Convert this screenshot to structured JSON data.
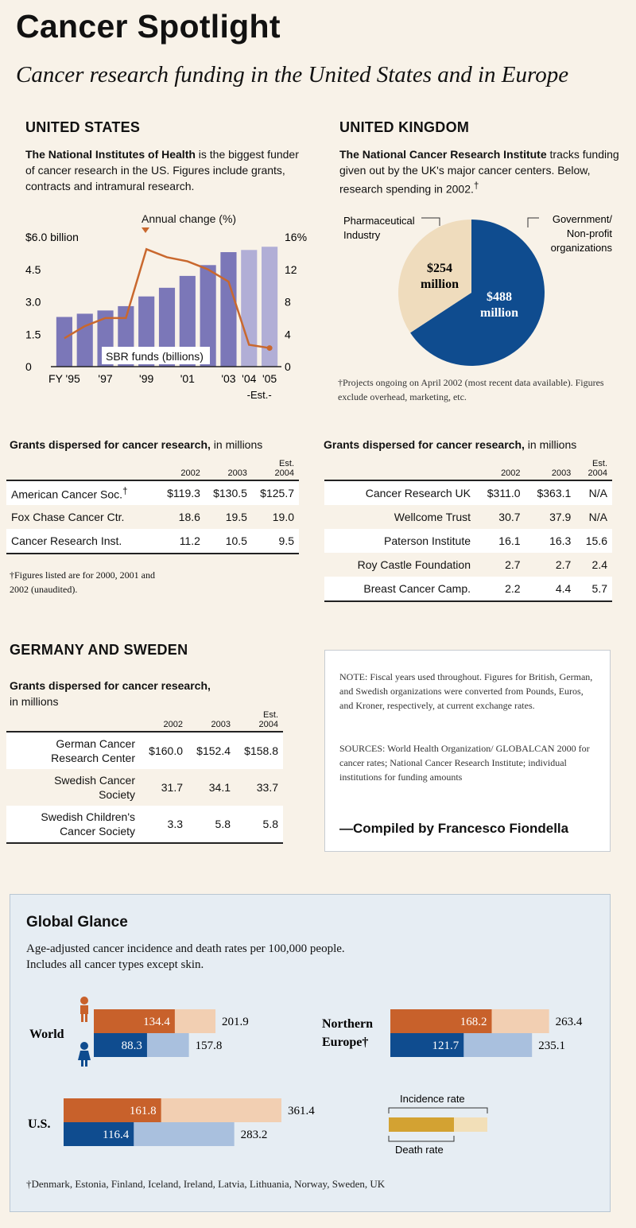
{
  "header": {
    "title": "Cancer Spotlight",
    "subtitle": "Cancer research funding in the United States and in Europe"
  },
  "us": {
    "heading": "UNITED STATES",
    "intro_bold": "The National Institutes of Health",
    "intro_rest": " is the biggest funder of cancer research in the US. Figures include grants, contracts and intramural research."
  },
  "uk": {
    "heading": "UNITED KINGDOM",
    "intro_bold": "The National Cancer Research Institute",
    "intro_rest": " tracks funding given out by the UK's major cancer centers. Below, research spending in 2002.",
    "intro_mark": "†",
    "footnote": "†Projects ongoing on April 2002 (most recent data available). Figures exclude overhead, marketing, etc."
  },
  "chart_data": [
    {
      "type": "bar",
      "title": "",
      "categories": [
        "FY '95",
        "'96",
        "'97",
        "'98",
        "'99",
        "'00",
        "'01",
        "'02",
        "'03",
        "'04",
        "'05"
      ],
      "x_tick_labels": [
        "FY '95",
        "'97",
        "'99",
        "'01",
        "'03",
        "'04",
        "'05"
      ],
      "x_sublabel": "-Est.-",
      "left_axis": {
        "label": "$6.0 billion",
        "ticks": [
          "0",
          "1.5",
          "3.0",
          "4.5",
          "$6.0 billion"
        ],
        "ylim": [
          0,
          6.0
        ]
      },
      "right_axis": {
        "ticks": [
          "0",
          "4",
          "8",
          "12",
          "16%"
        ],
        "ylim": [
          0,
          16
        ]
      },
      "series": [
        {
          "name": "SBR funds (billions)",
          "kind": "bar",
          "values": [
            2.3,
            2.45,
            2.6,
            2.8,
            3.25,
            3.65,
            4.2,
            4.7,
            5.3,
            5.4,
            5.55
          ],
          "estimated_from_index": 9
        },
        {
          "name": "Annual change (%)",
          "kind": "line",
          "axis": "right",
          "values": [
            3.5,
            5.0,
            6.0,
            6.0,
            14.5,
            13.5,
            13.0,
            12.0,
            10.5,
            2.7,
            2.3
          ]
        }
      ],
      "annotations": [
        "Annual change (%)",
        "SBR funds (billions)"
      ],
      "colors": {
        "bar": "#7b77b8",
        "bar_est": "#b1aed6",
        "line": "#c9682e"
      }
    },
    {
      "type": "pie",
      "title": "",
      "slices": [
        {
          "label": "Government/ Non-profit organizations",
          "value": 488,
          "value_label_1": "$488",
          "value_label_2": "million",
          "color": "#0f4c8f"
        },
        {
          "label": "Pharmaceutical Industry",
          "value": 254,
          "value_label_1": "$254",
          "value_label_2": "million",
          "color": "#efdcbd"
        }
      ],
      "label_lines": {
        "pharma": [
          "Pharmaceutical",
          "Industry"
        ],
        "gov": [
          "Government/",
          "Non-profit",
          "organizations"
        ]
      }
    },
    {
      "type": "bar",
      "title": "Global Glance",
      "subtitle_1": "Age-adjusted cancer incidence and death rates per 100,000 people.",
      "subtitle_2": "Includes all cancer types except skin.",
      "groups": [
        {
          "name": "World",
          "men_incidence": 201.9,
          "men_death": 134.4,
          "women_incidence": 157.8,
          "women_death": 88.3,
          "labels": {
            "mi": "201.9",
            "md": "134.4",
            "wi": "157.8",
            "wd": "88.3"
          }
        },
        {
          "name": "U.S.",
          "men_incidence": 361.4,
          "men_death": 161.8,
          "women_incidence": 283.2,
          "women_death": 116.4,
          "labels": {
            "mi": "361.4",
            "md": "161.8",
            "wi": "283.2",
            "wd": "116.4"
          }
        },
        {
          "name_1": "Northern",
          "name_2": "Europe†",
          "men_incidence": 263.4,
          "men_death": 168.2,
          "women_incidence": 235.1,
          "women_death": 121.7,
          "labels": {
            "mi": "263.4",
            "md": "168.2",
            "wi": "235.1",
            "wd": "121.7"
          }
        }
      ],
      "legend": {
        "incidence": "Incidence rate",
        "death": "Death rate"
      },
      "footnote": "†Denmark, Estonia, Finland, Iceland, Ireland, Latvia, Lithuania, Norway, Sweden, UK",
      "colors": {
        "men_death": "#c8612b",
        "men_incidence": "#f2cfb2",
        "women_death": "#0f4c8f",
        "women_incidence": "#a9c0de",
        "legend_death": "#d3a232",
        "legend_incidence": "#f2dfb8"
      }
    }
  ],
  "us_table": {
    "title_bold": "Grants dispersed for cancer research,",
    "title_rest": " in millions",
    "col_headers": [
      "2002",
      "2003",
      "Est.",
      "2004"
    ],
    "rows": [
      {
        "name": "American Cancer Soc.",
        "mark": "†",
        "v2002": "$119.3",
        "v2003": "$130.5",
        "v2004": "$125.7"
      },
      {
        "name": "Fox Chase Cancer Ctr.",
        "v2002": "18.6",
        "v2003": "19.5",
        "v2004": "19.0"
      },
      {
        "name": "Cancer Research Inst.",
        "v2002": "11.2",
        "v2003": "10.5",
        "v2004": "9.5"
      }
    ],
    "footnote_1": "†Figures listed are for 2000, 2001 and",
    "footnote_2": "2002 (unaudited)."
  },
  "uk_table": {
    "title_bold": "Grants dispersed for cancer research,",
    "title_rest": " in millions",
    "col_headers": [
      "2002",
      "2003",
      "Est.",
      "2004"
    ],
    "rows": [
      {
        "name": "Cancer Research UK",
        "v2002": "$311.0",
        "v2003": "$363.1",
        "v2004": "N/A"
      },
      {
        "name": "Wellcome Trust",
        "v2002": "30.7",
        "v2003": "37.9",
        "v2004": "N/A"
      },
      {
        "name": "Paterson Institute",
        "v2002": "16.1",
        "v2003": "16.3",
        "v2004": "15.6"
      },
      {
        "name": "Roy Castle Foundation",
        "v2002": "2.7",
        "v2003": "2.7",
        "v2004": "2.4"
      },
      {
        "name": "Breast Cancer Camp.",
        "v2002": "2.2",
        "v2003": "4.4",
        "v2004": "5.7"
      }
    ]
  },
  "de_se": {
    "heading": "GERMANY AND SWEDEN",
    "title_bold": "Grants dispersed for cancer research,",
    "title_rest": "in millions",
    "col_headers": [
      "2002",
      "2003",
      "Est.",
      "2004"
    ],
    "rows": [
      {
        "name_1": "German Cancer",
        "name_2": "Research Center",
        "v2002": "$160.0",
        "v2003": "$152.4",
        "v2004": "$158.8"
      },
      {
        "name_1": "Swedish Cancer",
        "name_2": "Society",
        "v2002": "31.7",
        "v2003": "34.1",
        "v2004": "33.7"
      },
      {
        "name_1": "Swedish Children's",
        "name_2": "Cancer Society",
        "v2002": "3.3",
        "v2003": "5.8",
        "v2004": "5.8"
      }
    ]
  },
  "note": {
    "note_text": "NOTE: Fiscal years used throughout. Figures for British, German, and Swedish organizations were converted from Pounds, Euros, and Kroner, respectively, at current exchange rates.",
    "sources_text": "SOURCES: World Health Organization/ GLOBALCAN 2000 for cancer rates; National Cancer Research Institute; individual institutions for funding amounts",
    "credit": "—Compiled by Francesco Fiondella"
  }
}
